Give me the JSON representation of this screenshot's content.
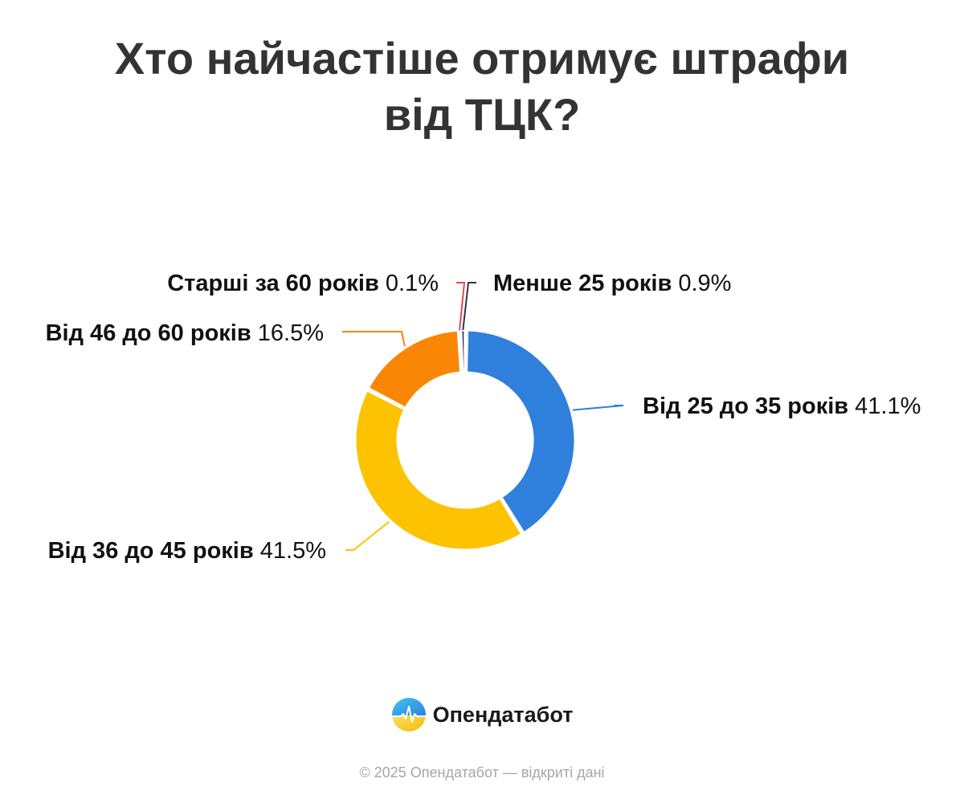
{
  "header": {
    "title_line1": "Хто найчастіше отримує штрафи",
    "title_line2": "від ТЦК?"
  },
  "chart_data": {
    "type": "pie",
    "variant": "donut",
    "categories": [
      "Від 25 до 35 років",
      "Від 36 до 45 років",
      "Від 46 до 60 років",
      "Старші за 60 років",
      "Менше 25 років"
    ],
    "values": [
      41.1,
      41.5,
      16.5,
      0.1,
      0.9
    ],
    "value_labels": [
      "41.1%",
      "41.5%",
      "16.5%",
      "0.1%",
      "0.9%"
    ],
    "colors": [
      "#2f80dc",
      "#fdc200",
      "#f98705",
      "#e5484d",
      "#27364f"
    ],
    "legend": "none",
    "labels_position": "outside-with-leader-lines"
  },
  "brand": {
    "name": "Опендатабот",
    "logo_icon": "opendatabot-logo-icon"
  },
  "footer": {
    "text": "© 2025 Опендатабот — відкриті дані"
  }
}
